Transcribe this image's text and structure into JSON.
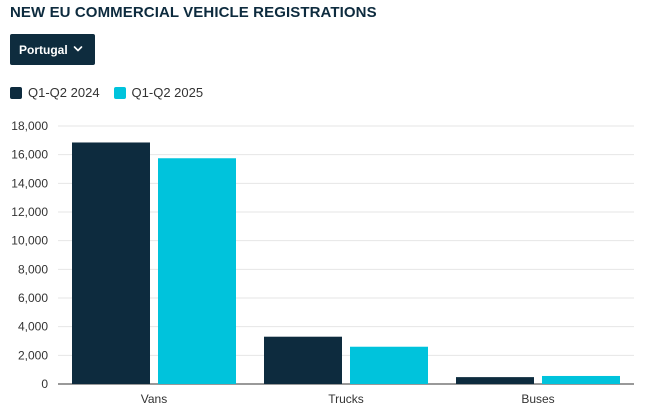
{
  "header": {
    "title": "NEW EU COMMERCIAL VEHICLE REGISTRATIONS"
  },
  "filter": {
    "selected": "Portugal",
    "icon": "chevron-down-icon"
  },
  "colors": {
    "series_2024": "#0d2b3e",
    "series_2025": "#00c3dc",
    "grid": "#e6e6e6",
    "axis": "#333333"
  },
  "chart_data": {
    "type": "bar",
    "title": "NEW EU COMMERCIAL VEHICLE REGISTRATIONS",
    "categories": [
      "Vans",
      "Trucks",
      "Buses"
    ],
    "series": [
      {
        "name": "Q1-Q2 2024",
        "values": [
          16850,
          3300,
          480
        ]
      },
      {
        "name": "Q1-Q2 2025",
        "values": [
          15750,
          2600,
          560
        ]
      }
    ],
    "yticks": [
      "0",
      "2,000",
      "4,000",
      "6,000",
      "8,000",
      "10,000",
      "12,000",
      "14,000",
      "16,000",
      "18,000"
    ],
    "ylim": [
      0,
      18000
    ],
    "xlabel": "",
    "ylabel": "",
    "grid": true,
    "legend": "top-left"
  }
}
